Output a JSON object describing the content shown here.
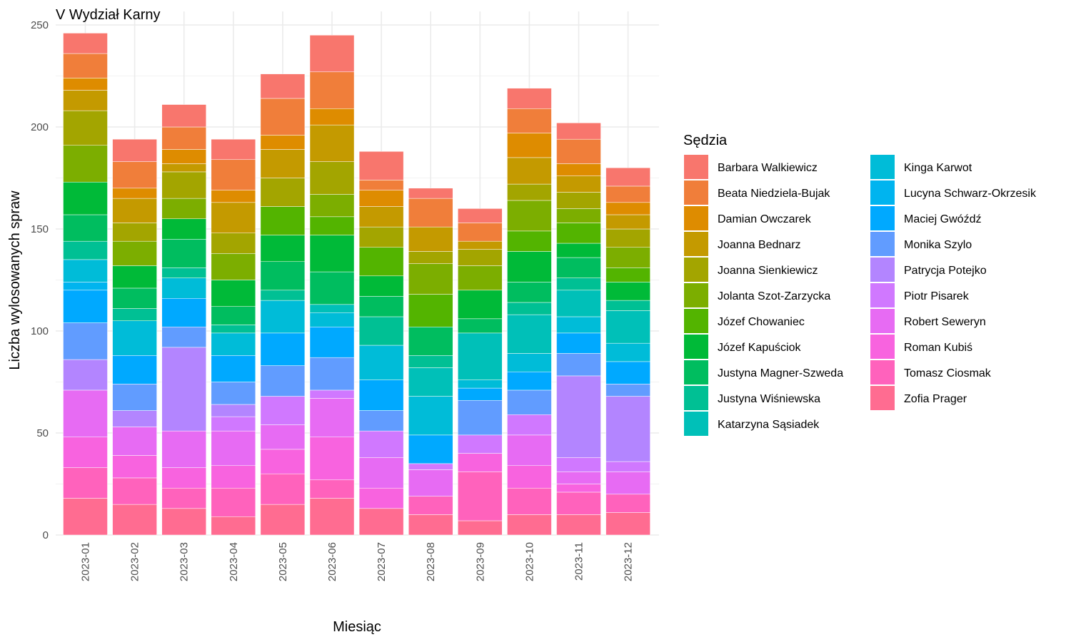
{
  "chart_data": {
    "type": "bar",
    "stacked": true,
    "title": "V Wydział Karny",
    "xlabel": "Miesiąc",
    "ylabel": "Liczba wylosowanych spraw",
    "ylim": [
      0,
      250
    ],
    "yticks": [
      0,
      50,
      100,
      150,
      200,
      250
    ],
    "grid": true,
    "legend_title": "Sędzia",
    "legend_position": "right",
    "categories": [
      "2023-01",
      "2023-02",
      "2023-03",
      "2023-04",
      "2023-05",
      "2023-06",
      "2023-07",
      "2023-08",
      "2023-09",
      "2023-10",
      "2023-11",
      "2023-12"
    ],
    "series": [
      {
        "name": "Zofia Prager",
        "color": "#FF6C91",
        "values": [
          18,
          15,
          13,
          9,
          15,
          18,
          13,
          10,
          7,
          10,
          10,
          11
        ]
      },
      {
        "name": "Tomasz Ciosmak",
        "color": "#FF62BC",
        "values": [
          15,
          13,
          10,
          14,
          15,
          9,
          0,
          9,
          24,
          13,
          11,
          9
        ]
      },
      {
        "name": "Roman Kubiś",
        "color": "#F863DF",
        "values": [
          15,
          11,
          10,
          11,
          12,
          21,
          10,
          0,
          9,
          11,
          4,
          0
        ]
      },
      {
        "name": "Robert Seweryn",
        "color": "#E76BF3",
        "values": [
          23,
          14,
          18,
          17,
          12,
          19,
          15,
          13,
          0,
          15,
          6,
          11
        ]
      },
      {
        "name": "Piotr Pisarek",
        "color": "#D078FF",
        "values": [
          0,
          0,
          0,
          7,
          14,
          4,
          13,
          3,
          9,
          10,
          7,
          5
        ]
      },
      {
        "name": "Patrycja Potejko",
        "color": "#B385FF",
        "values": [
          15,
          8,
          41,
          6,
          0,
          0,
          0,
          0,
          0,
          0,
          40,
          32
        ]
      },
      {
        "name": "Monika Szylo",
        "color": "#619CFF",
        "values": [
          18,
          13,
          10,
          11,
          15,
          16,
          10,
          0,
          17,
          12,
          11,
          6
        ]
      },
      {
        "name": "Maciej Gwóźdź",
        "color": "#00A9FF",
        "values": [
          16,
          14,
          14,
          13,
          16,
          15,
          15,
          14,
          6,
          9,
          10,
          11
        ]
      },
      {
        "name": "Lucyna Schwarz-Okrzesik",
        "color": "#00B4EF",
        "values": [
          4,
          0,
          0,
          0,
          0,
          0,
          0,
          0,
          0,
          0,
          0,
          0
        ]
      },
      {
        "name": "Kinga Karwot",
        "color": "#00BCD8",
        "values": [
          11,
          17,
          10,
          11,
          16,
          7,
          17,
          19,
          4,
          9,
          8,
          9
        ]
      },
      {
        "name": "Katarzyna Sąsiadek",
        "color": "#00C0B8",
        "values": [
          0,
          0,
          0,
          0,
          0,
          4,
          0,
          14,
          23,
          19,
          13,
          16
        ]
      },
      {
        "name": "Justyna Wiśniewska",
        "color": "#00C094",
        "values": [
          9,
          6,
          5,
          4,
          5,
          0,
          14,
          6,
          0,
          6,
          6,
          5
        ]
      },
      {
        "name": "Justyna Magner-Szweda",
        "color": "#00BD5F",
        "values": [
          13,
          10,
          14,
          9,
          14,
          16,
          10,
          14,
          7,
          10,
          10,
          0
        ]
      },
      {
        "name": "Józef Kapuściok",
        "color": "#00BA38",
        "values": [
          16,
          11,
          10,
          13,
          13,
          18,
          10,
          0,
          14,
          15,
          7,
          9
        ]
      },
      {
        "name": "Józef Chowaniec",
        "color": "#53B400",
        "values": [
          0,
          0,
          0,
          0,
          14,
          9,
          14,
          16,
          0,
          10,
          10,
          7
        ]
      },
      {
        "name": "Jolanta Szot-Zarzycka",
        "color": "#7CAE00",
        "values": [
          18,
          12,
          10,
          13,
          0,
          11,
          0,
          15,
          12,
          15,
          7,
          10
        ]
      },
      {
        "name": "Joanna Sienkiewicz",
        "color": "#A3A500",
        "values": [
          17,
          9,
          13,
          10,
          14,
          16,
          10,
          6,
          8,
          8,
          8,
          9
        ]
      },
      {
        "name": "Joanna Bednarz",
        "color": "#C49A00",
        "values": [
          10,
          12,
          4,
          15,
          14,
          18,
          10,
          12,
          4,
          13,
          8,
          7
        ]
      },
      {
        "name": "Damian Owczarek",
        "color": "#DE8C00",
        "values": [
          6,
          5,
          7,
          6,
          7,
          8,
          8,
          0,
          0,
          12,
          6,
          6
        ]
      },
      {
        "name": "Beata Niedziela-Bujak",
        "color": "#F07E3A",
        "values": [
          12,
          13,
          11,
          15,
          18,
          18,
          5,
          14,
          9,
          12,
          12,
          8
        ]
      },
      {
        "name": "Barbara Walkiewicz",
        "color": "#F8766D",
        "values": [
          10,
          11,
          11,
          10,
          12,
          18,
          14,
          5,
          7,
          10,
          8,
          9
        ]
      }
    ],
    "legend_order": [
      "Barbara Walkiewicz",
      "Beata Niedziela-Bujak",
      "Damian Owczarek",
      "Joanna Bednarz",
      "Joanna Sienkiewicz",
      "Jolanta Szot-Zarzycka",
      "Józef Chowaniec",
      "Józef Kapuściok",
      "Justyna Magner-Szweda",
      "Justyna Wiśniewska",
      "Katarzyna Sąsiadek",
      "Kinga Karwot",
      "Lucyna Schwarz-Okrzesik",
      "Maciej Gwóźdź",
      "Monika Szylo",
      "Patrycja Potejko",
      "Piotr Pisarek",
      "Robert Seweryn",
      "Roman Kubiś",
      "Tomasz Ciosmak",
      "Zofia Prager"
    ]
  }
}
